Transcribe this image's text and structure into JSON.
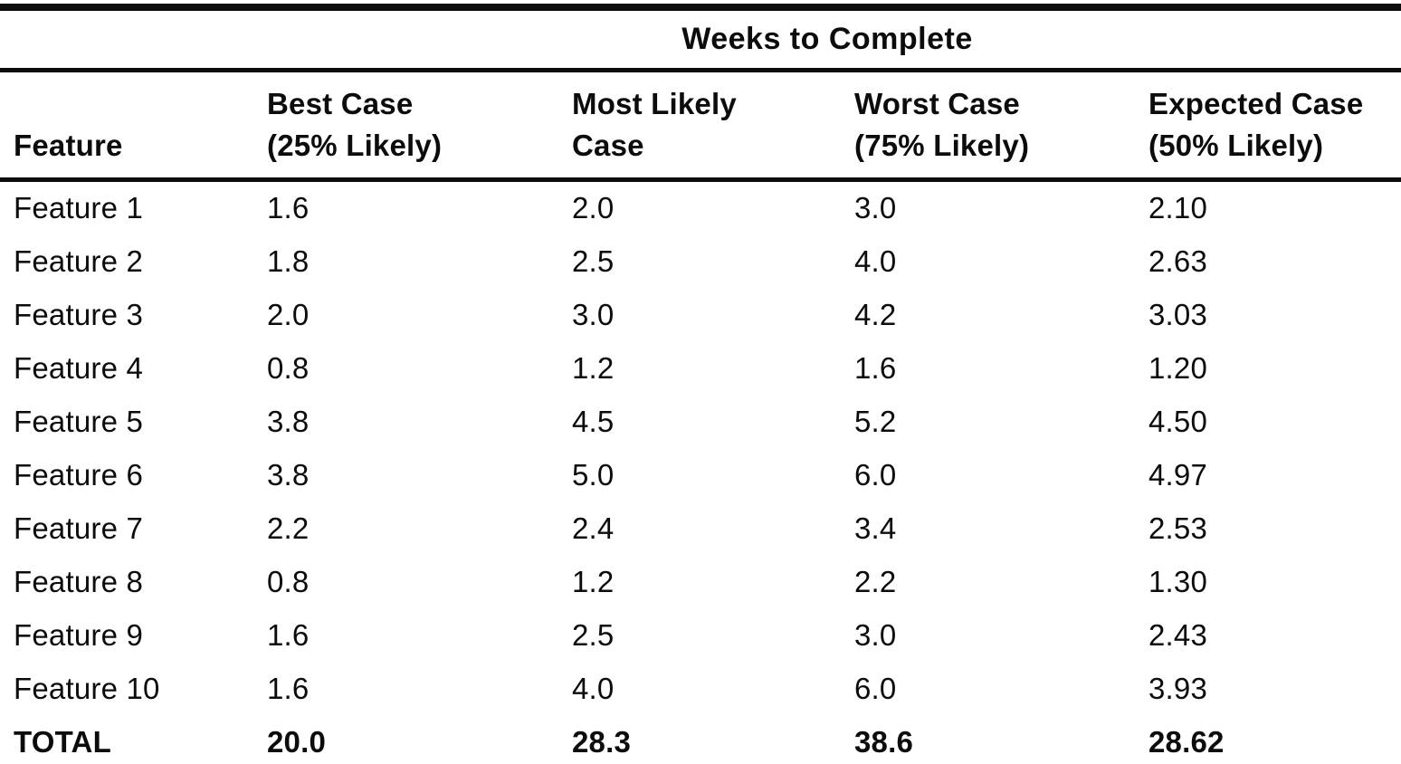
{
  "chart_data": {
    "type": "table",
    "title": "Weeks to Complete",
    "columns": [
      "Feature",
      "Best Case (25% Likely)",
      "Most Likely Case",
      "Worst Case (75% Likely)",
      "Expected Case (50% Likely)"
    ],
    "rows": [
      [
        "Feature 1",
        "1.6",
        "2.0",
        "3.0",
        "2.10"
      ],
      [
        "Feature 2",
        "1.8",
        "2.5",
        "4.0",
        "2.63"
      ],
      [
        "Feature 3",
        "2.0",
        "3.0",
        "4.2",
        "3.03"
      ],
      [
        "Feature 4",
        "0.8",
        "1.2",
        "1.6",
        "1.20"
      ],
      [
        "Feature 5",
        "3.8",
        "4.5",
        "5.2",
        "4.50"
      ],
      [
        "Feature 6",
        "3.8",
        "5.0",
        "6.0",
        "4.97"
      ],
      [
        "Feature 7",
        "2.2",
        "2.4",
        "3.4",
        "2.53"
      ],
      [
        "Feature 8",
        "0.8",
        "1.2",
        "2.2",
        "1.30"
      ],
      [
        "Feature 9",
        "1.6",
        "2.5",
        "3.0",
        "2.43"
      ],
      [
        "Feature 10",
        "1.6",
        "4.0",
        "6.0",
        "3.93"
      ]
    ],
    "total_row": [
      "TOTAL",
      "20.0",
      "28.3",
      "38.6",
      "28.62"
    ]
  },
  "header": {
    "lines": [
      [
        "Feature",
        ""
      ],
      [
        "Best Case",
        "(25% Likely)"
      ],
      [
        "Most Likely",
        "Case"
      ],
      [
        "Worst Case",
        "(75% Likely)"
      ],
      [
        "Expected Case",
        "(50% Likely)"
      ]
    ]
  },
  "colors": {
    "text": "#0c0c0c",
    "rule": "#0c0c0c",
    "background": "#ffffff"
  }
}
